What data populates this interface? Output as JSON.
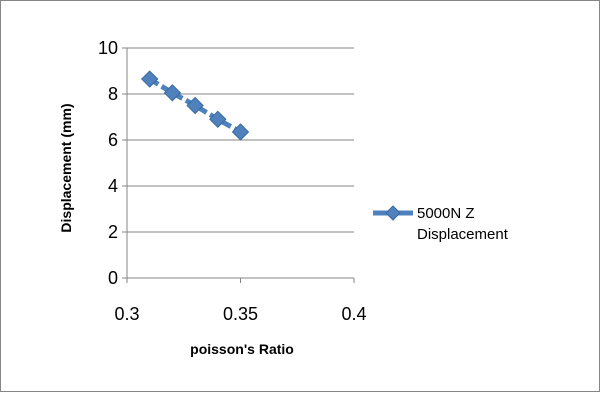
{
  "chart_data": {
    "type": "line",
    "title": "",
    "xlabel": "poisson's Ratio",
    "ylabel": "Displacement (mm)",
    "xlim": [
      0.3,
      0.4
    ],
    "ylim": [
      0,
      10
    ],
    "x_ticks": [
      "0.3",
      "0.35",
      "0.4"
    ],
    "y_ticks": [
      "0",
      "2",
      "4",
      "6",
      "8",
      "10"
    ],
    "grid": "horizontal",
    "legend_position": "right",
    "series": [
      {
        "name": "5000N Z Displacement",
        "legend_lines": [
          "5000N Z",
          "Displacement"
        ],
        "color": "#4f81bd",
        "marker": "diamond",
        "line_style": "dashed",
        "x": [
          0.31,
          0.32,
          0.33,
          0.34,
          0.35
        ],
        "y": [
          8.65,
          8.05,
          7.5,
          6.9,
          6.35
        ]
      }
    ]
  }
}
